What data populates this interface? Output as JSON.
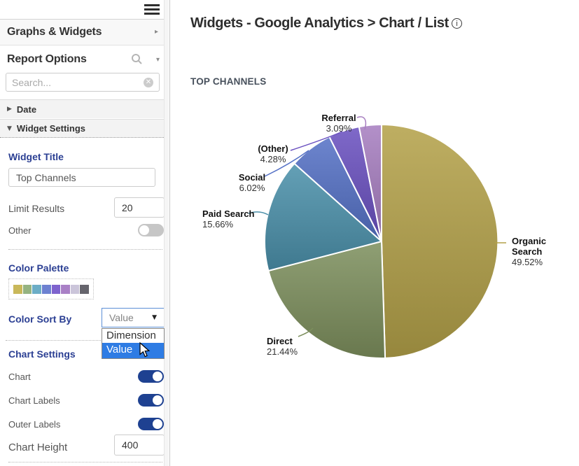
{
  "topbar": {
    "menu_icon": "hamburger-menu"
  },
  "sidebar": {
    "graphs_widgets_label": "Graphs & Widgets",
    "report_options_label": "Report Options",
    "search_placeholder": "Search...",
    "date_section_label": "Date",
    "widget_settings_label": "Widget Settings",
    "widget_title_label": "Widget Title",
    "widget_title_value": "Top Channels",
    "limit_results_label": "Limit Results",
    "limit_results_value": "20",
    "other_label": "Other",
    "other_on": false,
    "color_palette_label": "Color Palette",
    "palette": [
      "#c9b85a",
      "#95b381",
      "#6cadc6",
      "#6d81d1",
      "#7e63ce",
      "#a980c6",
      "#cbc5da",
      "#66656d"
    ],
    "color_sort_by_label": "Color Sort By",
    "color_sort_value": "Value",
    "dropdown_options": [
      "Dimension",
      "Value"
    ],
    "dropdown_selected": "Value",
    "chart_settings_label": "Chart Settings",
    "toggles": [
      {
        "label": "Chart",
        "on": true
      },
      {
        "label": "Chart Labels",
        "on": true
      },
      {
        "label": "Outer Labels",
        "on": true
      }
    ],
    "chart_height_label": "Chart Height",
    "chart_height_value": "400"
  },
  "main": {
    "title": "Widgets - Google Analytics > Chart / List",
    "info_icon": "i",
    "widget_heading": "TOP CHANNELS"
  },
  "chart_data": {
    "type": "pie",
    "title": "TOP CHANNELS",
    "labels": [
      "Organic Search",
      "Direct",
      "Paid Search",
      "Social",
      "(Other)",
      "Referral"
    ],
    "values": [
      49.52,
      21.44,
      15.66,
      6.02,
      4.28,
      3.09
    ],
    "pct_labels": [
      "49.52%",
      "21.44%",
      "15.66%",
      "6.02%",
      "4.28%",
      "3.09%"
    ],
    "colors": [
      "#b3a149",
      "#7d8f5d",
      "#4b90aa",
      "#5571c6",
      "#6a50c0",
      "#a77ec0"
    ],
    "start_angle_deg": 0,
    "direction": "clockwise",
    "labels_outside": true,
    "legend": "none"
  },
  "ui_colors": {
    "accent_blue_label": "#2b3f93",
    "toggle_on": "#1e4191",
    "dropdown_highlight": "#2e7ce4",
    "select_border": "#5b8fd6"
  }
}
